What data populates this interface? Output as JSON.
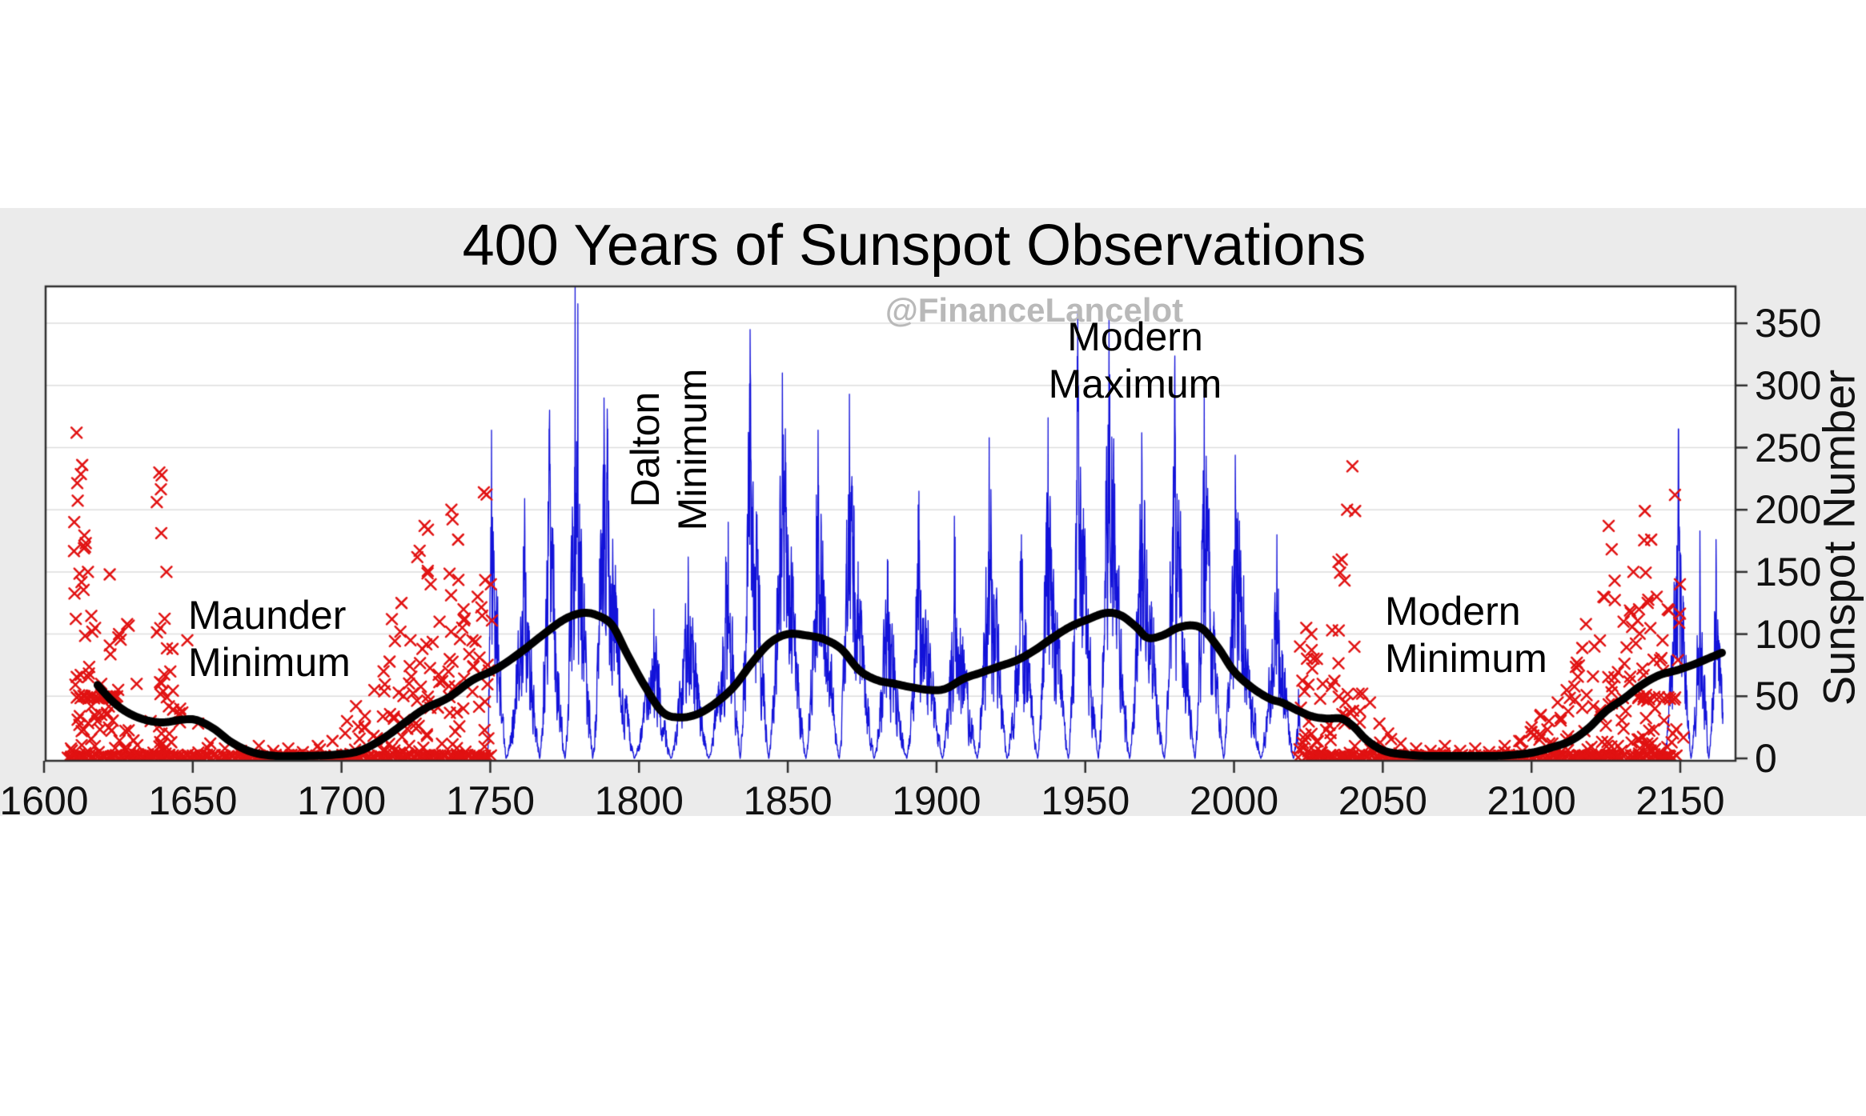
{
  "figure": {
    "title": "400 Years of Sunspot Observations",
    "watermark": "@FinanceLancelot",
    "background": "#ffffff",
    "panel_background": "#ebebeb",
    "plot_background": "#ffffff"
  },
  "annotations": {
    "maunder": {
      "line1": "Maunder",
      "line2": "Minimum"
    },
    "dalton": {
      "line1": "Dalton",
      "line2": "Minimum"
    },
    "modern_max": {
      "line1": "Modern",
      "line2": "Maximum"
    },
    "modern_min": {
      "line1": "Modern",
      "line2": "Minimum"
    }
  },
  "axes": {
    "x": {
      "ticks": [
        1600,
        1650,
        1700,
        1750,
        1800,
        1850,
        1900,
        1950,
        2000,
        2050,
        2100,
        2150
      ],
      "range": [
        1600,
        2168.5
      ]
    },
    "y": {
      "label": "Sunspot Number",
      "ticks": [
        0,
        50,
        100,
        150,
        200,
        250,
        300,
        350
      ],
      "range": [
        0,
        380
      ],
      "gridlines": [
        50,
        100,
        150,
        200,
        250,
        300,
        350
      ]
    }
  },
  "colors": {
    "observed_line": "#1212d9",
    "scatter_x": "#e11212",
    "smoothed_line": "#000000",
    "grid": "#dddddd",
    "axis_frame": "#2e2e2e",
    "tick_text": "#111111",
    "watermark": "#b9b9b9"
  },
  "chart_data": {
    "type": "line",
    "title": "400 Years of Sunspot Observations",
    "xlabel": "",
    "ylabel": "Sunspot Number",
    "xlim": [
      1600,
      2168.5
    ],
    "ylim": [
      0,
      380
    ],
    "grid": "horizontal-only",
    "legend": "none",
    "series": [
      {
        "name": "monthly-sunspot-number-observed",
        "style": "line",
        "color": "#1212d9",
        "width": 1.3,
        "comment": "cycles are [start_year, peak_year, end_year, peak_value]; drawn as noisy monthly spiky line",
        "segments": [
          {
            "clip": [
              1749.0,
              2022.3
            ],
            "cycles": [
              [
                1749.0,
                1750.4,
                1755.3,
                264
              ],
              [
                1755.3,
                1761.6,
                1766.6,
                182
              ],
              [
                1766.6,
                1769.8,
                1775.1,
                265
              ],
              [
                1775.1,
                1778.5,
                1784.4,
                380
              ],
              [
                1784.4,
                1788.2,
                1798.4,
                290
              ],
              [
                1798.4,
                1805.0,
                1810.7,
                120
              ],
              [
                1810.7,
                1816.5,
                1823.4,
                162
              ],
              [
                1823.4,
                1830.0,
                1834.0,
                190
              ],
              [
                1834.0,
                1837.3,
                1843.6,
                345
              ],
              [
                1843.6,
                1848.2,
                1856.1,
                310
              ],
              [
                1856.1,
                1860.2,
                1867.3,
                264
              ],
              [
                1867.3,
                1870.7,
                1879.0,
                293
              ],
              [
                1879.0,
                1883.5,
                1890.0,
                160
              ],
              [
                1890.0,
                1894.1,
                1902.0,
                215
              ],
              [
                1902.0,
                1906.2,
                1913.7,
                178
              ],
              [
                1913.7,
                1917.7,
                1923.7,
                258
              ],
              [
                1923.7,
                1928.5,
                1934.0,
                180
              ],
              [
                1934.0,
                1937.5,
                1944.3,
                274
              ],
              [
                1944.3,
                1947.6,
                1954.4,
                300
              ],
              [
                1954.4,
                1958.0,
                1964.9,
                360
              ],
              [
                1964.9,
                1969.0,
                1976.6,
                262
              ],
              [
                1976.6,
                1980.0,
                1986.9,
                302
              ],
              [
                1986.9,
                1990.0,
                1996.5,
                298
              ],
              [
                1996.5,
                2000.4,
                2009.0,
                244
              ],
              [
                2009.0,
                2014.4,
                2020.0,
                180
              ],
              [
                2020.0,
                2024.0,
                2028.0,
                170
              ]
            ]
          },
          {
            "clip": [
              2144.6,
              2164.4
            ],
            "cycles": [
              [
                2144.6,
                2149.4,
                2153.6,
                265
              ],
              [
                2153.6,
                2156.6,
                2159.6,
                183
              ],
              [
                2159.6,
                2162.0,
                2166.0,
                176
              ]
            ]
          }
        ]
      },
      {
        "name": "sparse-historical-and-projected-observations",
        "style": "x-scatter",
        "color": "#e11212",
        "marker_size": 13,
        "comment": "columns are [year_center, max_value, n_points]; bands are [year_from, year_to, value, n_points]",
        "columns": [
          [
            1609,
            8,
            4
          ],
          [
            1611,
            262,
            13
          ],
          [
            1613,
            236,
            15
          ],
          [
            1615,
            150,
            8
          ],
          [
            1617,
            105,
            6
          ],
          [
            1619,
            60,
            5
          ],
          [
            1622,
            148,
            9
          ],
          [
            1625,
            100,
            7
          ],
          [
            1628,
            108,
            8
          ],
          [
            1631,
            60,
            5
          ],
          [
            1636,
            30,
            3
          ],
          [
            1639,
            230,
            16
          ],
          [
            1641,
            150,
            12
          ],
          [
            1643,
            88,
            7
          ],
          [
            1646,
            40,
            4
          ],
          [
            1648,
            95,
            3
          ],
          [
            1652,
            28,
            3
          ],
          [
            1656,
            12,
            2
          ],
          [
            1661,
            8,
            2
          ],
          [
            1666,
            6,
            2
          ],
          [
            1672,
            10,
            2
          ],
          [
            1677,
            6,
            2
          ],
          [
            1682,
            8,
            2
          ],
          [
            1687,
            5,
            2
          ],
          [
            1692,
            10,
            2
          ],
          [
            1697,
            14,
            3
          ],
          [
            1702,
            30,
            5
          ],
          [
            1705,
            42,
            6
          ],
          [
            1708,
            34,
            5
          ],
          [
            1711,
            55,
            6
          ],
          [
            1714,
            70,
            7
          ],
          [
            1717,
            112,
            9
          ],
          [
            1720,
            125,
            9
          ],
          [
            1723,
            95,
            8
          ],
          [
            1726,
            167,
            10
          ],
          [
            1728,
            187,
            11
          ],
          [
            1730,
            140,
            9
          ],
          [
            1733,
            110,
            7
          ],
          [
            1737,
            200,
            12
          ],
          [
            1739,
            176,
            10
          ],
          [
            1741,
            120,
            8
          ],
          [
            1744,
            95,
            6
          ],
          [
            1746,
            130,
            6
          ],
          [
            1748,
            214,
            9
          ],
          [
            1750,
            140,
            6
          ],
          [
            2022,
            90,
            5
          ],
          [
            2024,
            105,
            8
          ],
          [
            2026,
            100,
            8
          ],
          [
            2028,
            80,
            6
          ],
          [
            2030,
            60,
            5
          ],
          [
            2033,
            103,
            6
          ],
          [
            2036,
            160,
            9
          ],
          [
            2038,
            200,
            12
          ],
          [
            2040,
            235,
            2
          ],
          [
            2041,
            199,
            4
          ],
          [
            2043,
            52,
            4
          ],
          [
            2046,
            45,
            4
          ],
          [
            2049,
            28,
            3
          ],
          [
            2052,
            20,
            2
          ],
          [
            2056,
            12,
            2
          ],
          [
            2061,
            8,
            2
          ],
          [
            2066,
            6,
            2
          ],
          [
            2071,
            10,
            2
          ],
          [
            2076,
            6,
            2
          ],
          [
            2081,
            8,
            2
          ],
          [
            2086,
            5,
            2
          ],
          [
            2091,
            10,
            2
          ],
          [
            2096,
            14,
            3
          ],
          [
            2100,
            25,
            4
          ],
          [
            2103,
            35,
            5
          ],
          [
            2106,
            30,
            4
          ],
          [
            2109,
            45,
            5
          ],
          [
            2112,
            55,
            6
          ],
          [
            2115,
            77,
            7
          ],
          [
            2118,
            108,
            8
          ],
          [
            2121,
            90,
            7
          ],
          [
            2124,
            130,
            8
          ],
          [
            2126,
            187,
            10
          ],
          [
            2128,
            143,
            9
          ],
          [
            2131,
            110,
            8
          ],
          [
            2134,
            150,
            9
          ],
          [
            2136,
            120,
            8
          ],
          [
            2138,
            199,
            11
          ],
          [
            2140,
            176,
            9
          ],
          [
            2142,
            130,
            7
          ],
          [
            2144,
            95,
            6
          ],
          [
            2146,
            120,
            6
          ],
          [
            2148,
            212,
            8
          ],
          [
            2150,
            140,
            5
          ]
        ],
        "bands": [
          [
            1608,
            1750,
            0,
            200
          ],
          [
            1611,
            1624,
            48,
            22
          ],
          [
            2024,
            2146,
            0,
            180
          ],
          [
            2136,
            2148,
            47,
            8
          ]
        ]
      },
      {
        "name": "smoothed-sunspot-number",
        "style": "line",
        "color": "#000000",
        "width": 10,
        "points": [
          [
            1618,
            59
          ],
          [
            1623,
            46
          ],
          [
            1628,
            37
          ],
          [
            1634,
            31
          ],
          [
            1640,
            29
          ],
          [
            1646,
            31
          ],
          [
            1651,
            31
          ],
          [
            1657,
            24
          ],
          [
            1663,
            13
          ],
          [
            1670,
            5
          ],
          [
            1678,
            2
          ],
          [
            1688,
            2
          ],
          [
            1698,
            3
          ],
          [
            1706,
            6
          ],
          [
            1714,
            16
          ],
          [
            1722,
            30
          ],
          [
            1728,
            40
          ],
          [
            1736,
            49
          ],
          [
            1744,
            63
          ],
          [
            1752,
            72
          ],
          [
            1760,
            85
          ],
          [
            1768,
            100
          ],
          [
            1775,
            112
          ],
          [
            1781,
            117
          ],
          [
            1786,
            115
          ],
          [
            1791,
            107
          ],
          [
            1796,
            84
          ],
          [
            1802,
            58
          ],
          [
            1808,
            37
          ],
          [
            1814,
            33
          ],
          [
            1820,
            36
          ],
          [
            1826,
            45
          ],
          [
            1832,
            58
          ],
          [
            1838,
            77
          ],
          [
            1844,
            93
          ],
          [
            1850,
            100
          ],
          [
            1856,
            99
          ],
          [
            1862,
            96
          ],
          [
            1868,
            88
          ],
          [
            1874,
            71
          ],
          [
            1880,
            63
          ],
          [
            1886,
            60
          ],
          [
            1892,
            57
          ],
          [
            1898,
            55
          ],
          [
            1903,
            56
          ],
          [
            1909,
            64
          ],
          [
            1915,
            69
          ],
          [
            1921,
            74
          ],
          [
            1927,
            79
          ],
          [
            1933,
            87
          ],
          [
            1939,
            97
          ],
          [
            1945,
            106
          ],
          [
            1951,
            112
          ],
          [
            1957,
            117
          ],
          [
            1962,
            115
          ],
          [
            1967,
            106
          ],
          [
            1971,
            97
          ],
          [
            1976,
            99
          ],
          [
            1981,
            105
          ],
          [
            1986,
            107
          ],
          [
            1990,
            103
          ],
          [
            1995,
            88
          ],
          [
            2000,
            70
          ],
          [
            2006,
            57
          ],
          [
            2012,
            48
          ],
          [
            2016,
            45
          ],
          [
            2021,
            39
          ],
          [
            2026,
            34
          ],
          [
            2031,
            32
          ],
          [
            2036,
            32
          ],
          [
            2040,
            26
          ],
          [
            2044,
            16
          ],
          [
            2048,
            9
          ],
          [
            2052,
            5
          ],
          [
            2058,
            3
          ],
          [
            2064,
            2
          ],
          [
            2072,
            2
          ],
          [
            2080,
            2
          ],
          [
            2088,
            2
          ],
          [
            2095,
            3
          ],
          [
            2101,
            5
          ],
          [
            2107,
            9
          ],
          [
            2113,
            14
          ],
          [
            2119,
            24
          ],
          [
            2125,
            38
          ],
          [
            2131,
            48
          ],
          [
            2137,
            59
          ],
          [
            2143,
            67
          ],
          [
            2149,
            71
          ],
          [
            2155,
            76
          ],
          [
            2160,
            81
          ],
          [
            2164,
            85
          ]
        ]
      }
    ]
  }
}
